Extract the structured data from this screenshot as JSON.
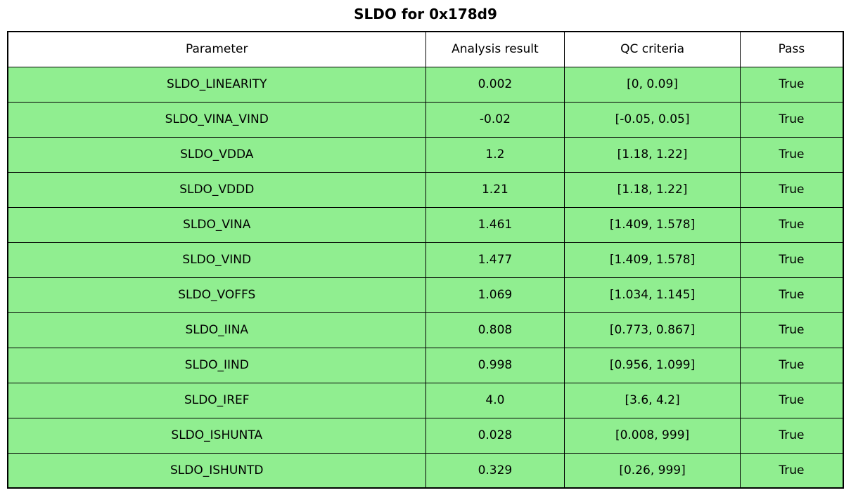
{
  "figure": {
    "title": "SLDO for 0x178d9"
  },
  "colors": {
    "pass_row_bg": "#90EE90",
    "fail_row_bg": "#FF6961",
    "header_bg": "#FFFFFF",
    "border": "#000000",
    "text": "#000000"
  },
  "chart_data": {
    "type": "table",
    "title": "SLDO for 0x178d9",
    "columns": [
      "Parameter",
      "Analysis result",
      "QC criteria",
      "Pass"
    ],
    "rows": [
      [
        "SLDO_LINEARITY",
        "0.002",
        "[0, 0.09]",
        "True"
      ],
      [
        "SLDO_VINA_VIND",
        "-0.02",
        "[-0.05, 0.05]",
        "True"
      ],
      [
        "SLDO_VDDA",
        "1.2",
        "[1.18, 1.22]",
        "True"
      ],
      [
        "SLDO_VDDD",
        "1.21",
        "[1.18, 1.22]",
        "True"
      ],
      [
        "SLDO_VINA",
        "1.461",
        "[1.409, 1.578]",
        "True"
      ],
      [
        "SLDO_VIND",
        "1.477",
        "[1.409, 1.578]",
        "True"
      ],
      [
        "SLDO_VOFFS",
        "1.069",
        "[1.034, 1.145]",
        "True"
      ],
      [
        "SLDO_IINA",
        "0.808",
        "[0.773, 0.867]",
        "True"
      ],
      [
        "SLDO_IIND",
        "0.998",
        "[0.956, 1.099]",
        "True"
      ],
      [
        "SLDO_IREF",
        "4.0",
        "[3.6, 4.2]",
        "True"
      ],
      [
        "SLDO_ISHUNTA",
        "0.028",
        "[0.008, 999]",
        "True"
      ],
      [
        "SLDO_ISHUNTD",
        "0.329",
        "[0.26, 999]",
        "True"
      ]
    ],
    "layout": {
      "header_background": "#FFFFFF",
      "row_background_pass": "#90EE90",
      "column_width_percent": [
        50,
        16.65,
        21,
        12.35
      ],
      "grid": true
    }
  }
}
